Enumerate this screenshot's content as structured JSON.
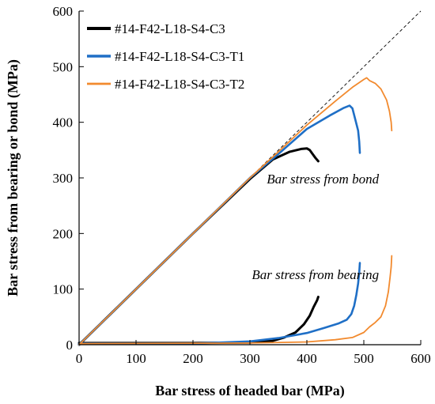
{
  "chart_data": {
    "type": "line",
    "xlabel": "Bar stress of headed bar (MPa)",
    "ylabel": "Bar stress from bearing or bond (MPa)",
    "xlim": [
      0,
      600
    ],
    "ylim": [
      0,
      600
    ],
    "xticks": [
      "0",
      "100",
      "200",
      "300",
      "400",
      "500",
      "600"
    ],
    "yticks": [
      "0",
      "100",
      "200",
      "300",
      "400",
      "500",
      "600"
    ],
    "grid": false,
    "legend_position": "top-left",
    "reference_line": {
      "style": "dashed",
      "color": "#000000",
      "from": [
        0,
        0
      ],
      "to": [
        600,
        600
      ]
    },
    "annotations": [
      {
        "text": "Bar stress from bond",
        "x": 428,
        "y": 290
      },
      {
        "text": "Bar stress from bearing",
        "x": 415,
        "y": 118
      }
    ],
    "series": [
      {
        "name": "#14-F42-L18-S4-C3",
        "color": "#000000",
        "bond": [
          [
            0,
            0
          ],
          [
            100,
            100
          ],
          [
            200,
            200
          ],
          [
            300,
            298
          ],
          [
            340,
            333
          ],
          [
            370,
            347
          ],
          [
            390,
            352
          ],
          [
            400,
            353
          ],
          [
            405,
            350
          ],
          [
            410,
            343
          ],
          [
            415,
            336
          ],
          [
            420,
            330
          ]
        ],
        "bearing": [
          [
            0,
            3
          ],
          [
            200,
            3
          ],
          [
            300,
            4
          ],
          [
            340,
            7
          ],
          [
            360,
            13
          ],
          [
            380,
            22
          ],
          [
            395,
            37
          ],
          [
            405,
            52
          ],
          [
            412,
            68
          ],
          [
            418,
            80
          ],
          [
            420,
            86
          ]
        ]
      },
      {
        "name": "#14-F42-L18-S4-C3-T1",
        "color": "#1f6fc6",
        "bond": [
          [
            0,
            0
          ],
          [
            100,
            100
          ],
          [
            200,
            200
          ],
          [
            300,
            300
          ],
          [
            350,
            343
          ],
          [
            400,
            388
          ],
          [
            440,
            412
          ],
          [
            465,
            426
          ],
          [
            475,
            430
          ],
          [
            480,
            425
          ],
          [
            485,
            405
          ],
          [
            490,
            385
          ],
          [
            492,
            365
          ],
          [
            493,
            345
          ]
        ],
        "bearing": [
          [
            0,
            2
          ],
          [
            200,
            2
          ],
          [
            300,
            6
          ],
          [
            350,
            12
          ],
          [
            400,
            21
          ],
          [
            430,
            30
          ],
          [
            455,
            38
          ],
          [
            470,
            45
          ],
          [
            478,
            55
          ],
          [
            483,
            70
          ],
          [
            487,
            90
          ],
          [
            490,
            110
          ],
          [
            492,
            130
          ],
          [
            493,
            147
          ]
        ]
      },
      {
        "name": "#14-F42-L18-S4-C3-T2",
        "color": "#f28a2e",
        "bond": [
          [
            0,
            0
          ],
          [
            100,
            100
          ],
          [
            200,
            200
          ],
          [
            300,
            300
          ],
          [
            350,
            347
          ],
          [
            400,
            395
          ],
          [
            450,
            438
          ],
          [
            480,
            463
          ],
          [
            500,
            477
          ],
          [
            505,
            480
          ],
          [
            510,
            475
          ],
          [
            520,
            470
          ],
          [
            530,
            460
          ],
          [
            540,
            440
          ],
          [
            545,
            420
          ],
          [
            548,
            400
          ],
          [
            549,
            385
          ]
        ],
        "bearing": [
          [
            0,
            2
          ],
          [
            300,
            3
          ],
          [
            400,
            5
          ],
          [
            450,
            9
          ],
          [
            480,
            13
          ],
          [
            500,
            22
          ],
          [
            510,
            32
          ],
          [
            520,
            40
          ],
          [
            530,
            50
          ],
          [
            538,
            70
          ],
          [
            543,
            95
          ],
          [
            546,
            120
          ],
          [
            548,
            140
          ],
          [
            549,
            160
          ]
        ]
      }
    ]
  }
}
